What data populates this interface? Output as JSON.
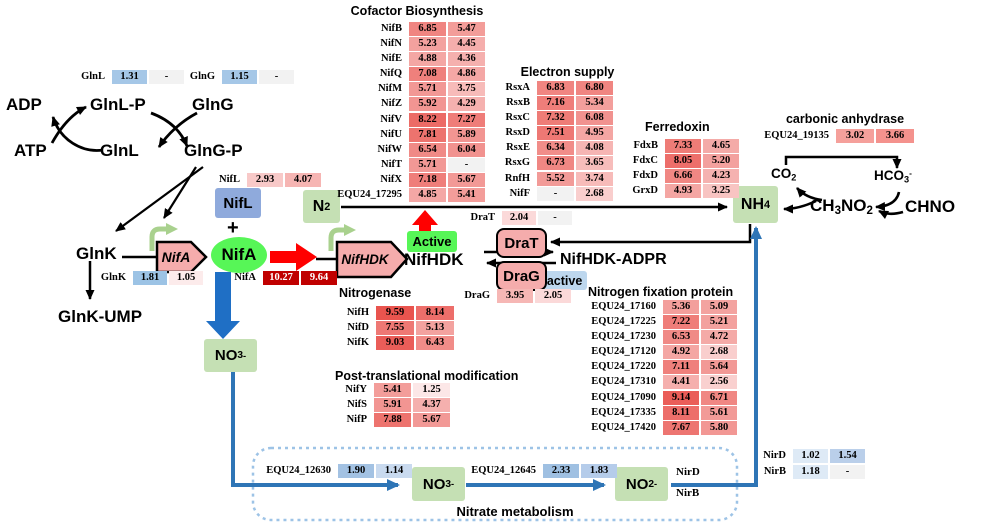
{
  "colors": {
    "heat_dark_red": "#C00000",
    "node_green": "#C5E0B4",
    "bright_green": "#57F657",
    "nifl_blue": "#8FAADC",
    "pink_box": "#F5ACAC",
    "inactive_blue": "#BDD7EE",
    "promoter_green": "#A9D18E",
    "blue_arrow": "#1F6FC5",
    "blue_path": "#2E75B6",
    "dashed_border": "#9DC3E6",
    "red_arrow": "#FF0000",
    "no_value_gray": "#F2F2F2"
  },
  "titles": {
    "cofactor": "Cofactor Biosynthesis",
    "electron": "Electron supply",
    "ferredoxin": "Ferredoxin",
    "nitrogenase": "Nitrogenase",
    "ptm": "Post-translational modification",
    "nfp": "Nitrogen fixation protein",
    "carbonic": "carbonic anhydrase",
    "nitrate": "Nitrate metabolism"
  },
  "nodes": {
    "adp": "ADP",
    "atp": "ATP",
    "glnlp": "GlnL-P",
    "glng": "GlnG",
    "glnl": "GlnL",
    "glngp": "GlnG-P",
    "glnk": "GlnK",
    "glnk_ump": "GlnK-UMP",
    "plus": "+",
    "nifl_box": "NifL",
    "nifa_oval": "NifA",
    "nifa_gene": "NifA",
    "nifhdk_gene": "NifHDK",
    "nifhdk": "NifHDK",
    "nifhdk_adpr": "NifHDK-ADPR",
    "drat": "DraT",
    "drag": "DraG",
    "active": "Active",
    "inactive": "Inactive",
    "chno": "CHNO",
    "nird": "NirD",
    "nirb": "NirB"
  },
  "formulas": {
    "n2": "N_2",
    "nh4": "NH_4",
    "no3_top": "NO_3^-",
    "no3_bottom": "NO_3^-",
    "no2_bottom": "NO_2^-",
    "co2": "CO_2",
    "hco3": "HCO_3^-",
    "ch3no2": "CH_3NO_2"
  },
  "tables": {
    "cofactor": {
      "rows": [
        {
          "label": "NifB",
          "cells": [
            {
              "v": "6.85",
              "bg": "#F08581"
            },
            {
              "v": "5.47",
              "bg": "#F39D99"
            }
          ]
        },
        {
          "label": "NifN",
          "cells": [
            {
              "v": "5.23",
              "bg": "#F3A19E"
            },
            {
              "v": "4.45",
              "bg": "#F5AEAC"
            }
          ]
        },
        {
          "label": "NifE",
          "cells": [
            {
              "v": "4.88",
              "bg": "#F4A7A4"
            },
            {
              "v": "4.36",
              "bg": "#F5B0AE"
            }
          ]
        },
        {
          "label": "NifQ",
          "cells": [
            {
              "v": "7.08",
              "bg": "#EF807C"
            },
            {
              "v": "4.86",
              "bg": "#F4A7A5"
            }
          ]
        },
        {
          "label": "NifM",
          "cells": [
            {
              "v": "5.71",
              "bg": "#F29895"
            },
            {
              "v": "3.75",
              "bg": "#F7BBB9"
            }
          ]
        },
        {
          "label": "NifZ",
          "cells": [
            {
              "v": "5.92",
              "bg": "#F29592"
            },
            {
              "v": "4.29",
              "bg": "#F5B1AF"
            }
          ]
        },
        {
          "label": "NifV",
          "cells": [
            {
              "v": "8.22",
              "bg": "#EC6B66"
            },
            {
              "v": "7.27",
              "bg": "#EF7D79"
            }
          ]
        },
        {
          "label": "NifU",
          "cells": [
            {
              "v": "7.81",
              "bg": "#ED736E"
            },
            {
              "v": "5.89",
              "bg": "#F29592"
            }
          ]
        },
        {
          "label": "NifW",
          "cells": [
            {
              "v": "6.54",
              "bg": "#F08A86"
            },
            {
              "v": "6.04",
              "bg": "#F1928F"
            }
          ]
        },
        {
          "label": "NifT",
          "cells": [
            {
              "v": "5.71",
              "bg": "#F29895"
            },
            {
              "v": "-",
              "bg": "#F2F2F2"
            }
          ]
        },
        {
          "label": "NifX",
          "cells": [
            {
              "v": "7.18",
              "bg": "#EF7E7A"
            },
            {
              "v": "5.67",
              "bg": "#F29996"
            }
          ]
        },
        {
          "label": "EQU24_17295",
          "cells": [
            {
              "v": "4.85",
              "bg": "#F4A7A5"
            },
            {
              "v": "5.41",
              "bg": "#F39D9A"
            }
          ]
        }
      ]
    },
    "electron": {
      "rows": [
        {
          "label": "RsxA",
          "cells": [
            {
              "v": "6.83",
              "bg": "#F08581"
            },
            {
              "v": "6.80",
              "bg": "#F08581"
            }
          ]
        },
        {
          "label": "RsxB",
          "cells": [
            {
              "v": "7.16",
              "bg": "#EF7E7A"
            },
            {
              "v": "5.34",
              "bg": "#F39F9C"
            }
          ]
        },
        {
          "label": "RsxC",
          "cells": [
            {
              "v": "7.32",
              "bg": "#EE7C77"
            },
            {
              "v": "6.08",
              "bg": "#F1928F"
            }
          ]
        },
        {
          "label": "RsxD",
          "cells": [
            {
              "v": "7.51",
              "bg": "#EE7874"
            },
            {
              "v": "4.95",
              "bg": "#F4A6A3"
            }
          ]
        },
        {
          "label": "RsxE",
          "cells": [
            {
              "v": "6.34",
              "bg": "#F18D89"
            },
            {
              "v": "4.08",
              "bg": "#F6B5B3"
            }
          ]
        },
        {
          "label": "RsxG",
          "cells": [
            {
              "v": "6.73",
              "bg": "#F08783"
            },
            {
              "v": "3.65",
              "bg": "#F7BDBB"
            }
          ]
        },
        {
          "label": "RnfH",
          "cells": [
            {
              "v": "5.52",
              "bg": "#F29B98"
            },
            {
              "v": "3.74",
              "bg": "#F7BBB9"
            }
          ]
        },
        {
          "label": "NifF",
          "cells": [
            {
              "v": "-",
              "bg": "#F2F2F2"
            },
            {
              "v": "2.68",
              "bg": "#F9CECD"
            }
          ]
        }
      ]
    },
    "ferredoxin": {
      "rows": [
        {
          "label": "FdxB",
          "cells": [
            {
              "v": "7.33",
              "bg": "#EE7C77"
            },
            {
              "v": "4.65",
              "bg": "#F4ABA8"
            }
          ]
        },
        {
          "label": "FdxC",
          "cells": [
            {
              "v": "8.05",
              "bg": "#ED6E6A"
            },
            {
              "v": "5.20",
              "bg": "#F3A19E"
            }
          ]
        },
        {
          "label": "FdxD",
          "cells": [
            {
              "v": "6.66",
              "bg": "#F08783"
            },
            {
              "v": "4.23",
              "bg": "#F5B2B0"
            }
          ]
        },
        {
          "label": "GrxD",
          "cells": [
            {
              "v": "4.93",
              "bg": "#F4A6A3"
            },
            {
              "v": "3.25",
              "bg": "#F8C4C2"
            }
          ]
        }
      ]
    },
    "nitrogenase": {
      "rows": [
        {
          "label": "NifH",
          "cells": [
            {
              "v": "9.59",
              "bg": "#E9544E"
            },
            {
              "v": "8.14",
              "bg": "#ED6E6A"
            }
          ]
        },
        {
          "label": "NifD",
          "cells": [
            {
              "v": "7.55",
              "bg": "#EE7874"
            },
            {
              "v": "5.13",
              "bg": "#F3A29F"
            }
          ]
        },
        {
          "label": "NifK",
          "cells": [
            {
              "v": "9.03",
              "bg": "#EA5D58"
            },
            {
              "v": "6.43",
              "bg": "#F18C88"
            }
          ]
        }
      ]
    },
    "ptm": {
      "rows": [
        {
          "label": "NifY",
          "cells": [
            {
              "v": "5.41",
              "bg": "#F39D9A"
            },
            {
              "v": "1.25",
              "bg": "#FCE7E7"
            }
          ]
        },
        {
          "label": "NifS",
          "cells": [
            {
              "v": "5.91",
              "bg": "#F29592"
            },
            {
              "v": "4.37",
              "bg": "#F5B0AE"
            }
          ]
        },
        {
          "label": "NifP",
          "cells": [
            {
              "v": "7.88",
              "bg": "#ED736E"
            },
            {
              "v": "5.67",
              "bg": "#F29996"
            }
          ]
        }
      ]
    },
    "nfp": {
      "rows": [
        {
          "label": "EQU24_17160",
          "cells": [
            {
              "v": "5.36",
              "bg": "#F39F9C"
            },
            {
              "v": "5.09",
              "bg": "#F3A3A0"
            }
          ]
        },
        {
          "label": "EQU24_17225",
          "cells": [
            {
              "v": "7.22",
              "bg": "#EF7D79"
            },
            {
              "v": "5.21",
              "bg": "#F3A19E"
            }
          ]
        },
        {
          "label": "EQU24_17230",
          "cells": [
            {
              "v": "6.53",
              "bg": "#F08A86"
            },
            {
              "v": "4.72",
              "bg": "#F4AAA7"
            }
          ]
        },
        {
          "label": "EQU24_17120",
          "cells": [
            {
              "v": "4.92",
              "bg": "#F4A6A3"
            },
            {
              "v": "2.68",
              "bg": "#F9CECD"
            }
          ]
        },
        {
          "label": "EQU24_17220",
          "cells": [
            {
              "v": "7.11",
              "bg": "#EF807C"
            },
            {
              "v": "5.64",
              "bg": "#F29996"
            }
          ]
        },
        {
          "label": "EQU24_17310",
          "cells": [
            {
              "v": "4.41",
              "bg": "#F5AFAD"
            },
            {
              "v": "2.56",
              "bg": "#F9D0CF"
            }
          ]
        },
        {
          "label": "EQU24_17090",
          "cells": [
            {
              "v": "9.14",
              "bg": "#EA5D58"
            },
            {
              "v": "6.71",
              "bg": "#F08783"
            }
          ]
        },
        {
          "label": "EQU24_17335",
          "cells": [
            {
              "v": "8.11",
              "bg": "#ED6E6A"
            },
            {
              "v": "5.61",
              "bg": "#F29A97"
            }
          ]
        },
        {
          "label": "EQU24_17420",
          "cells": [
            {
              "v": "7.67",
              "bg": "#ED7571"
            },
            {
              "v": "5.80",
              "bg": "#F29794"
            }
          ]
        }
      ]
    },
    "glnl_row": {
      "rows": [
        {
          "label": "GlnL",
          "cells": [
            {
              "v": "1.31",
              "bg": "#A5C7E7"
            },
            {
              "v": "-",
              "bg": "#F2F2F2"
            }
          ]
        }
      ]
    },
    "glng_row": {
      "rows": [
        {
          "label": "GlnG",
          "cells": [
            {
              "v": "1.15",
              "bg": "#A5C7E7"
            },
            {
              "v": "-",
              "bg": "#F2F2F2"
            }
          ]
        }
      ]
    },
    "nifl_row": {
      "rows": [
        {
          "label": "NifL",
          "cells": [
            {
              "v": "2.93",
              "bg": "#F8C9C8"
            },
            {
              "v": "4.07",
              "bg": "#F6B5B3"
            }
          ]
        }
      ]
    },
    "glnk_row": {
      "rows": [
        {
          "label": "GlnK",
          "cells": [
            {
              "v": "1.81",
              "bg": "#9CC3E5"
            },
            {
              "v": "1.05",
              "bg": "#FCEBEB"
            }
          ]
        }
      ]
    },
    "nifa_row": {
      "rows": [
        {
          "label": "NifA",
          "cells": [
            {
              "v": "10.27",
              "bg": "#C00000",
              "fg": "#FFFFFF"
            },
            {
              "v": "9.64",
              "bg": "#C00000",
              "fg": "#FFFFFF"
            }
          ]
        }
      ]
    },
    "drat_row": {
      "rows": [
        {
          "label": "DraT",
          "cells": [
            {
              "v": "2.04",
              "bg": "#FBD9D9"
            },
            {
              "v": "-",
              "bg": "#F2F2F2"
            }
          ]
        }
      ]
    },
    "drag_row": {
      "rows": [
        {
          "label": "DraG",
          "cells": [
            {
              "v": "3.95",
              "bg": "#F6B7B5"
            },
            {
              "v": "2.05",
              "bg": "#FBD9D9"
            }
          ]
        }
      ]
    },
    "equ19135_row": {
      "rows": [
        {
          "label": "EQU24_19135",
          "cells": [
            {
              "v": "3.02",
              "bg": "#F5A09B"
            },
            {
              "v": "3.66",
              "bg": "#F4928D"
            }
          ]
        }
      ]
    },
    "equ12630_row": {
      "rows": [
        {
          "label": "EQU24_12630",
          "cells": [
            {
              "v": "1.90",
              "bg": "#A3C2E3"
            },
            {
              "v": "1.14",
              "bg": "#C9DAEF"
            }
          ]
        }
      ]
    },
    "equ12645_row": {
      "rows": [
        {
          "label": "EQU24_12645",
          "cells": [
            {
              "v": "2.33",
              "bg": "#9FC0E2"
            },
            {
              "v": "1.83",
              "bg": "#B5CCEA"
            }
          ]
        }
      ]
    },
    "nird_row": {
      "rows": [
        {
          "label": "NirD",
          "cells": [
            {
              "v": "1.02",
              "bg": "#DEEAF6"
            },
            {
              "v": "1.54",
              "bg": "#BACFEA"
            }
          ]
        }
      ]
    },
    "nirb_row": {
      "rows": [
        {
          "label": "NirB",
          "cells": [
            {
              "v": "1.18",
              "bg": "#DEEAF6"
            },
            {
              "v": "-",
              "bg": "#F2F2F2"
            }
          ]
        }
      ]
    }
  }
}
